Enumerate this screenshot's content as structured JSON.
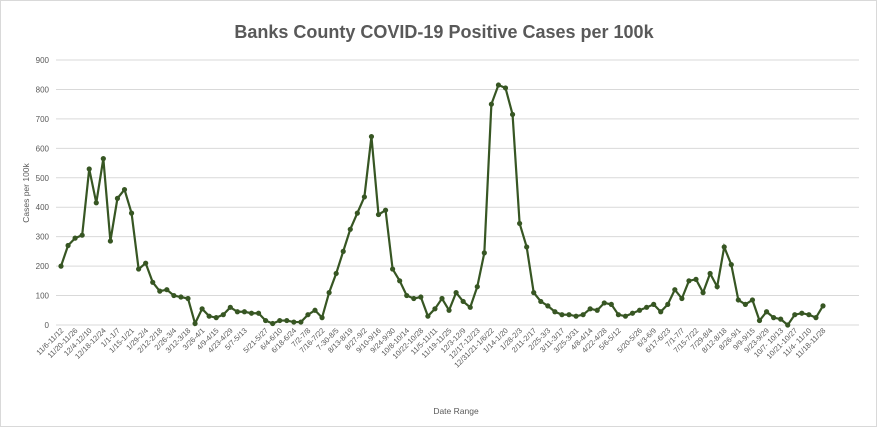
{
  "chart_data": {
    "type": "line",
    "title": "Banks County COVID-19 Positive Cases per 100k",
    "xlabel": "Date Range",
    "ylabel": "Cases per 100k",
    "ylim": [
      0,
      900
    ],
    "yticks": [
      0,
      100,
      200,
      300,
      400,
      500,
      600,
      700,
      800,
      900
    ],
    "grid": true,
    "legend": "none",
    "series_color": "#375623",
    "x_tick_labels": [
      "11/6-11/12",
      "11/20-11/26",
      "12/4-12/10",
      "12/18-12/24",
      "1/1-1/7",
      "1/15-1/21",
      "1/29-2/4",
      "2/12-2/18",
      "2/26-3/4",
      "3/12-3/18",
      "3/26-4/1",
      "4/9-4/15",
      "4/23-4/29",
      "5/7-5/13",
      "5/21-5/27",
      "6/4-6/10",
      "6/18-6/24",
      "7/2-7/8",
      "7/16-7/22",
      "7-30-8/5",
      "8/13-8/19",
      "8/27-9/2",
      "9/10-9/16",
      "9/24-9/30",
      "10/8-10/14",
      "10/22-10/28",
      "11/5-11/11",
      "11/19-11/25",
      "12/3-12/9",
      "12/17-12/23",
      "12/31/21-1/6/22",
      "1/14-1/20",
      "1/28-2/3",
      "2/11-2/17",
      "2/25-3/3",
      "3/11-3/17",
      "3/25-3/31",
      "4/8-4/14",
      "4/22-4/28",
      "5/6-5/12",
      "5/20-5/26",
      "6/3-6/9",
      "6/17-6/23",
      "7/1-7/7",
      "7/15-7/22",
      "7/29-8/4",
      "8/12-8/18",
      "8/26-9/1",
      "9/9-9/15",
      "9/23-9/29",
      "10/7- 10/13",
      "10/21-10/27",
      "11/4- 11/10",
      "11/18-11/28"
    ],
    "values": [
      200,
      270,
      295,
      305,
      530,
      415,
      565,
      285,
      430,
      460,
      380,
      190,
      210,
      145,
      115,
      120,
      100,
      95,
      90,
      5,
      55,
      30,
      25,
      35,
      60,
      45,
      45,
      40,
      40,
      15,
      5,
      15,
      15,
      10,
      10,
      35,
      50,
      25,
      110,
      175,
      250,
      325,
      380,
      435,
      640,
      375,
      390,
      190,
      150,
      100,
      90,
      95,
      30,
      55,
      90,
      50,
      110,
      80,
      60,
      130,
      245,
      750,
      815,
      805,
      715,
      345,
      265,
      110,
      80,
      65,
      45,
      35,
      35,
      30,
      35,
      55,
      50,
      75,
      70,
      35,
      30,
      40,
      50,
      60,
      70,
      45,
      70,
      120,
      90,
      150,
      155,
      110,
      175,
      130,
      265,
      205,
      85,
      70,
      85,
      15,
      45,
      25,
      20,
      0,
      35,
      40,
      35,
      25,
      65
    ]
  }
}
